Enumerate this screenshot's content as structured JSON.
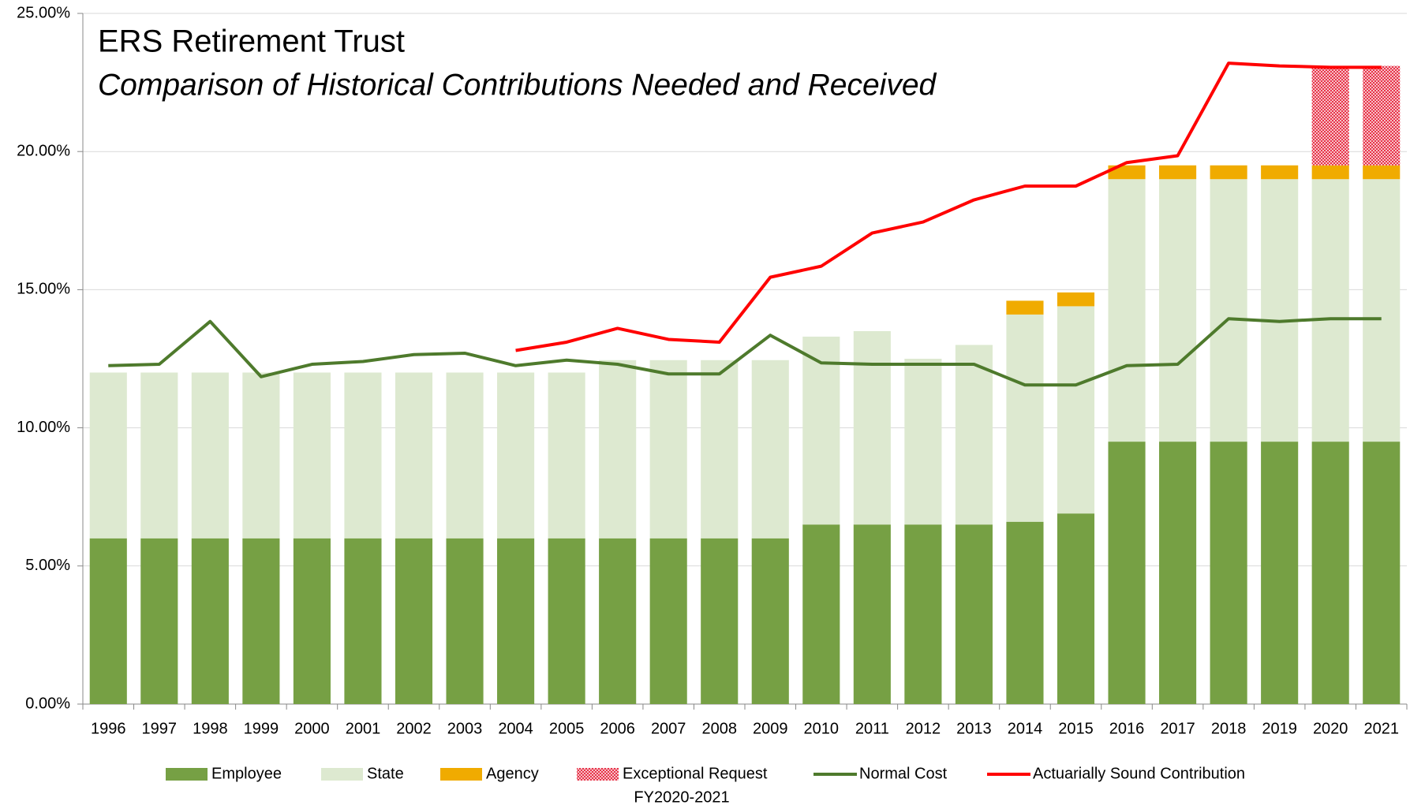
{
  "chart_data": {
    "type": "bar",
    "stacked": true,
    "title": "ERS Retirement Trust",
    "subtitle": "Comparison of Historical Contributions Needed and Received",
    "annotation": "FY2020-2021",
    "categories": [
      "1996",
      "1997",
      "1998",
      "1999",
      "2000",
      "2001",
      "2002",
      "2003",
      "2004",
      "2005",
      "2006",
      "2007",
      "2008",
      "2009",
      "2010",
      "2011",
      "2012",
      "2013",
      "2014",
      "2015",
      "2016",
      "2017",
      "2018",
      "2019",
      "2020",
      "2021"
    ],
    "ylim": [
      0,
      25
    ],
    "yticks": [
      {
        "value": 0,
        "label": "0.00%"
      },
      {
        "value": 5,
        "label": "5.00%"
      },
      {
        "value": 10,
        "label": "10.00%"
      },
      {
        "value": 15,
        "label": "15.00%"
      },
      {
        "value": 20,
        "label": "20.00%"
      },
      {
        "value": 25,
        "label": "25.00%"
      }
    ],
    "grid": true,
    "legend": "bottom",
    "series": [
      {
        "name": "Employee",
        "type": "bar",
        "color": "#76a044",
        "values": [
          6,
          6,
          6,
          6,
          6,
          6,
          6,
          6,
          6,
          6,
          6,
          6,
          6,
          6,
          6.5,
          6.5,
          6.5,
          6.5,
          6.6,
          6.9,
          9.5,
          9.5,
          9.5,
          9.5,
          9.5,
          9.5
        ]
      },
      {
        "name": "State",
        "type": "bar",
        "color": "#dde9d0",
        "values": [
          6,
          6,
          6,
          6,
          6,
          6,
          6,
          6,
          6,
          6,
          6.45,
          6.45,
          6.45,
          6.45,
          6.8,
          7,
          6,
          6.5,
          7.5,
          7.5,
          9.5,
          9.5,
          9.5,
          9.5,
          9.5,
          9.5
        ]
      },
      {
        "name": "Agency",
        "type": "bar",
        "color": "#f0ab00",
        "values": [
          null,
          null,
          null,
          null,
          null,
          null,
          null,
          null,
          null,
          null,
          null,
          null,
          null,
          null,
          null,
          null,
          null,
          null,
          0.5,
          0.5,
          0.5,
          0.5,
          0.5,
          0.5,
          0.5,
          0.5
        ]
      },
      {
        "name": "Exceptional Request",
        "type": "bar",
        "color": "#e8334a",
        "pattern": "dots",
        "values": [
          null,
          null,
          null,
          null,
          null,
          null,
          null,
          null,
          null,
          null,
          null,
          null,
          null,
          null,
          null,
          null,
          null,
          null,
          null,
          null,
          null,
          null,
          null,
          null,
          3.6,
          3.6
        ]
      },
      {
        "name": "Normal Cost",
        "type": "line",
        "color": "#4e7a2c",
        "values": [
          12.25,
          12.3,
          13.85,
          11.85,
          12.3,
          12.4,
          12.65,
          12.7,
          12.25,
          12.45,
          12.3,
          11.95,
          11.95,
          13.35,
          12.35,
          12.3,
          12.3,
          12.3,
          11.55,
          11.55,
          12.25,
          12.3,
          13.95,
          13.85,
          13.95,
          13.95
        ]
      },
      {
        "name": "Actuarially Sound Contribution",
        "type": "line",
        "color": "#ff0000",
        "values": [
          null,
          null,
          null,
          null,
          null,
          null,
          null,
          null,
          12.8,
          13.1,
          13.6,
          13.2,
          13.1,
          15.45,
          15.85,
          17.05,
          17.45,
          18.25,
          18.75,
          18.75,
          19.6,
          19.85,
          23.2,
          23.1,
          23.05,
          23.05
        ]
      }
    ]
  }
}
